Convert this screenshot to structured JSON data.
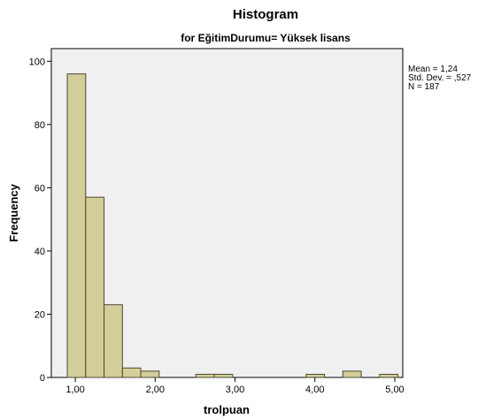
{
  "chart_data": {
    "type": "bar",
    "title": "Histogram",
    "subtitle": "for EğitimDurumu= Yüksek lisans",
    "xlabel": "trolpuan",
    "ylabel": "Frequency",
    "xlim": [
      0.7,
      5.1
    ],
    "ylim": [
      0,
      104
    ],
    "x_ticks": [
      1.0,
      2.0,
      3.0,
      4.0,
      5.0
    ],
    "x_tick_labels": [
      "1,00",
      "2,00",
      "3,00",
      "4,00",
      "5,00"
    ],
    "y_ticks": [
      0,
      20,
      40,
      60,
      80,
      100
    ],
    "y_tick_labels": [
      "0",
      "20",
      "40",
      "60",
      "80",
      "100"
    ],
    "bin_width": 0.23,
    "bins": [
      {
        "start": 0.9,
        "end": 1.13,
        "count": 96
      },
      {
        "start": 1.13,
        "end": 1.36,
        "count": 57
      },
      {
        "start": 1.36,
        "end": 1.59,
        "count": 23
      },
      {
        "start": 1.59,
        "end": 1.82,
        "count": 3
      },
      {
        "start": 1.82,
        "end": 2.05,
        "count": 2
      },
      {
        "start": 2.51,
        "end": 2.74,
        "count": 1
      },
      {
        "start": 2.74,
        "end": 2.97,
        "count": 1
      },
      {
        "start": 3.89,
        "end": 4.12,
        "count": 1
      },
      {
        "start": 4.35,
        "end": 4.58,
        "count": 2
      },
      {
        "start": 4.81,
        "end": 5.04,
        "count": 1
      }
    ],
    "stats": [
      "Mean = 1,24",
      "Std. Dev. = ,527",
      "N = 187"
    ],
    "grid": false,
    "colors": {
      "bar_fill": "#d3ce9a",
      "bar_stroke": "#4a4a30",
      "plot_background": "#f0f0f0",
      "frame": "#000000"
    }
  }
}
